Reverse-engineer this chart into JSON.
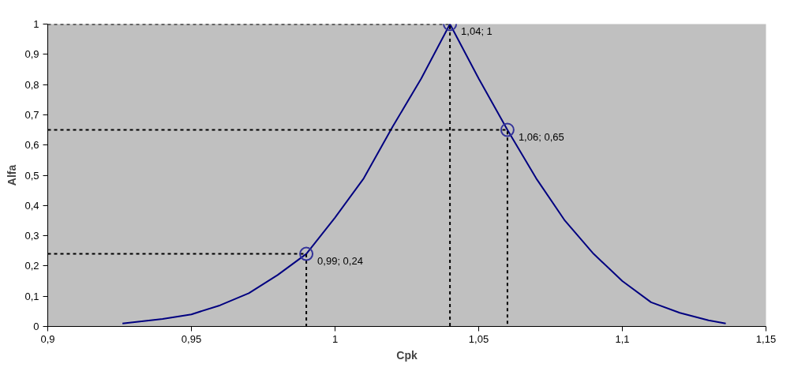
{
  "chart_data": {
    "type": "line",
    "xlabel": "Cpk",
    "ylabel": "Alfa",
    "grid": false,
    "xlim": [
      0.9,
      1.15
    ],
    "ylim": [
      0,
      1
    ],
    "xticks": [
      {
        "value": 0.9,
        "label": "0,9"
      },
      {
        "value": 0.95,
        "label": "0,95"
      },
      {
        "value": 1,
        "label": "1"
      },
      {
        "value": 1.05,
        "label": "1,05"
      },
      {
        "value": 1.1,
        "label": "1,1"
      },
      {
        "value": 1.15,
        "label": "1,15"
      }
    ],
    "yticks": [
      0,
      {
        "value": 0.1,
        "label": "0,1"
      },
      {
        "value": 0.2,
        "label": "0,2"
      },
      {
        "value": 0.3,
        "label": "0,3"
      },
      {
        "value": 0.4,
        "label": "0,4"
      },
      {
        "value": 0.5,
        "label": "0,5"
      },
      {
        "value": 0.6,
        "label": "0,6"
      },
      {
        "value": 0.7,
        "label": "0,7"
      },
      {
        "value": 0.8,
        "label": "0,8"
      },
      {
        "value": 0.9,
        "label": "0,9"
      },
      1
    ],
    "series": [
      {
        "color": "#000080",
        "line_style": "solid",
        "marker": "none",
        "x": [
          0.926,
          0.94,
          0.95,
          0.96,
          0.97,
          0.98,
          0.99,
          1.0,
          1.01,
          1.02,
          1.03,
          1.04,
          1.05,
          1.06,
          1.07,
          1.08,
          1.09,
          1.1,
          1.11,
          1.12,
          1.13,
          1.136
        ],
        "values": [
          0.01,
          0.025,
          0.04,
          0.07,
          0.11,
          0.17,
          0.24,
          0.36,
          0.49,
          0.66,
          0.82,
          1,
          0.82,
          0.65,
          0.49,
          0.35,
          0.24,
          0.15,
          0.08,
          0.045,
          0.02,
          0.01
        ]
      },
      {
        "color": "#000000",
        "line_style": "dotted",
        "marker": "none",
        "x": [
          0.9,
          0.99,
          0.99
        ],
        "values": [
          0.24,
          0.24,
          0
        ]
      },
      {
        "color": "#000000",
        "line_style": "dotted",
        "marker": "none",
        "x": [
          0.9,
          1.04,
          1.04
        ],
        "values": [
          1,
          1,
          0
        ]
      },
      {
        "color": "#000000",
        "line_style": "dotted",
        "marker": "none",
        "x": [
          0.9,
          1.06,
          1.06
        ],
        "values": [
          0.65,
          0.65,
          0
        ]
      },
      {
        "type": "scatter",
        "color": "#333399",
        "marker": "circle",
        "x": [
          0.99,
          1.04,
          1.06
        ],
        "values": [
          0.24,
          1,
          0.65
        ],
        "value_labels": [
          "0,99; 0,24",
          "1,04; 1",
          "1,06; 0,65"
        ]
      }
    ]
  }
}
